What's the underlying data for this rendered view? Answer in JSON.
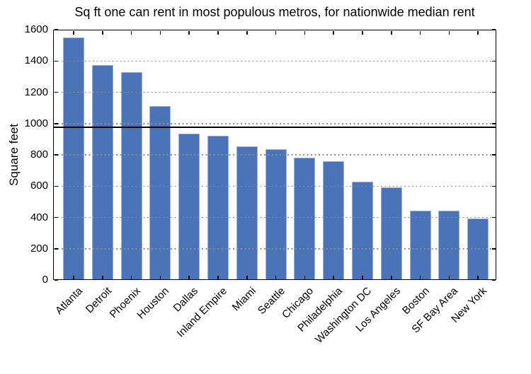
{
  "chart_data": {
    "type": "bar",
    "title": "Sq ft one can rent in most populous metros, for nationwide median rent",
    "xlabel": "",
    "ylabel": "Square feet",
    "categories": [
      "Atlanta",
      "Detroit",
      "Phoenix",
      "Houston",
      "Dallas",
      "Inland Empire",
      "Miami",
      "Seattle",
      "Chicago",
      "Philadelphia",
      "Washington DC",
      "Los Angeles",
      "Boston",
      "SF Bay Area",
      "New York"
    ],
    "values": [
      1550,
      1375,
      1330,
      1110,
      935,
      920,
      855,
      835,
      780,
      760,
      630,
      590,
      445,
      445,
      395
    ],
    "ylim": [
      0,
      1600
    ],
    "yticks": [
      0,
      200,
      400,
      600,
      800,
      1000,
      1200,
      1400,
      1600
    ],
    "reference_line_value": 975,
    "grid": "horizontal dotted gridlines at each y tick, drawn over bars",
    "legend": "none",
    "bar_color": "#4a73b8",
    "bar_edge_color": "#9db1d9",
    "gridline_color": "#8f8f8f",
    "reference_line_color": "#000000",
    "x_tick_rotation_deg": 45
  }
}
